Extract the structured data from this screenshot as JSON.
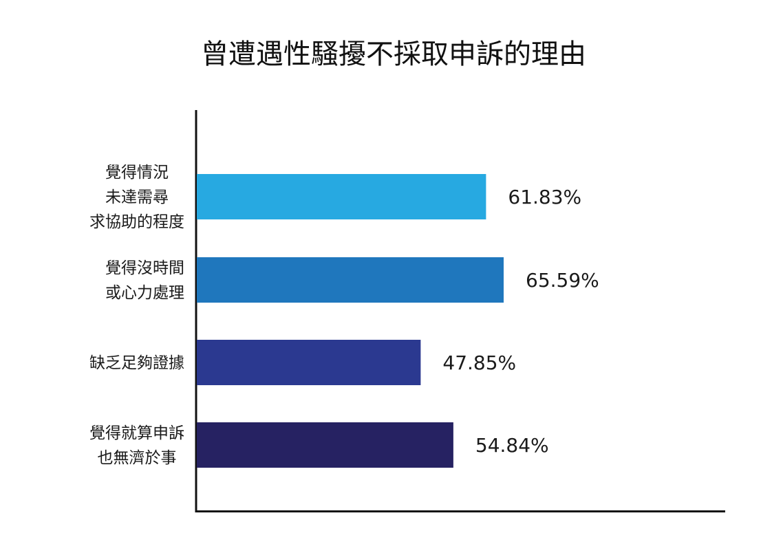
{
  "chart_data": {
    "type": "bar",
    "orientation": "horizontal",
    "title": "曾遭遇性騷擾不採取申訴的理由",
    "categories": [
      [
        "覺得情況",
        "未達需尋",
        "求協助的程度"
      ],
      [
        "覺得沒時間",
        "或心力處理"
      ],
      [
        "缺乏足夠證據"
      ],
      [
        "覺得就算申訴",
        "也無濟於事"
      ]
    ],
    "values": [
      61.83,
      65.59,
      47.85,
      54.84
    ],
    "value_labels": [
      "61.83%",
      "65.59%",
      "47.85%",
      "54.84%"
    ],
    "colors": [
      "#27a9e1",
      "#1f77bd",
      "#2b3990",
      "#262262"
    ],
    "xlabel": "",
    "ylabel": "",
    "xlim": [
      0,
      100
    ],
    "grid": false,
    "legend": "none"
  }
}
